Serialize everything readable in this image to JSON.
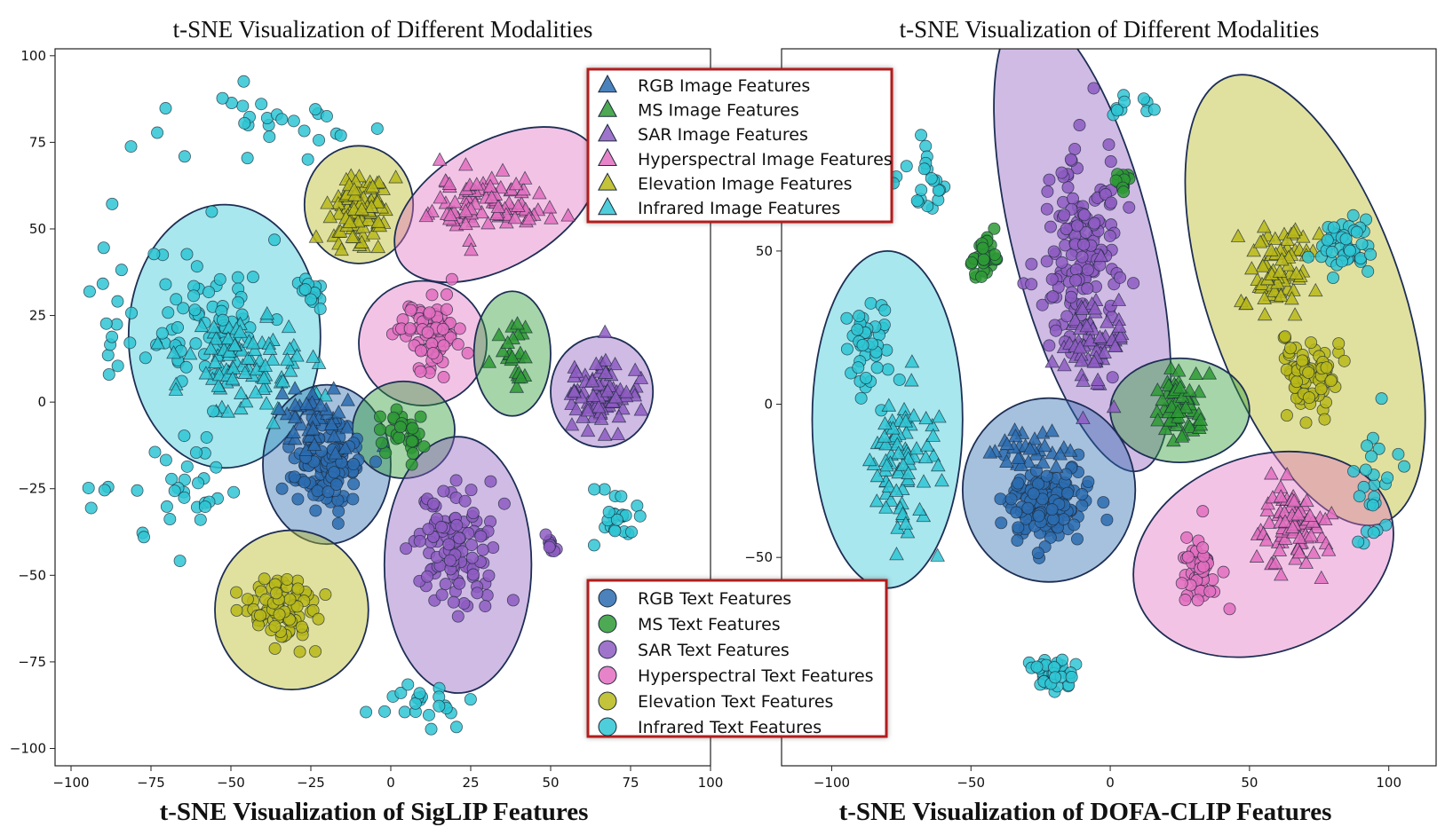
{
  "figure_captions": [
    "t-SNE Visualization of SigLIP Features",
    "t-SNE Visualization of DOFA-CLIP Features"
  ],
  "legend_image": {
    "entries": [
      "RGB Image Features",
      "MS Image Features",
      "SAR Image Features",
      "Hyperspectral Image Features",
      "Elevation Image Features",
      "Infrared Image Features"
    ],
    "marker": "triangle"
  },
  "legend_text": {
    "entries": [
      "RGB Text Features",
      "MS Text Features",
      "SAR Text Features",
      "Hyperspectral Text Features",
      "Elevation Text Features",
      "Infrared Text Features"
    ],
    "marker": "circle"
  },
  "colors": {
    "RGB": "#2b6cb0",
    "MS": "#2e9a35",
    "SAR": "#8e5cc2",
    "Hyperspectral": "#e36fc0",
    "Elevation": "#b8b81a",
    "Infrared": "#2fc6d3",
    "legend_border": "#b31b1b",
    "ellipse_edge": "#1d2e55"
  },
  "chart_data": [
    {
      "type": "scatter",
      "title": "t-SNE Visualization of Different Modalities",
      "caption": "t-SNE Visualization of SigLIP Features",
      "xlabel": "",
      "ylabel": "",
      "xlim": [
        -105,
        100
      ],
      "ylim": [
        -105,
        102
      ],
      "xticks": [
        -100,
        -75,
        -50,
        -25,
        0,
        25,
        50,
        75,
        100
      ],
      "yticks": [
        -100,
        -75,
        -50,
        -25,
        0,
        25,
        50,
        75,
        100
      ],
      "xtick_labels": [
        "−100",
        "−75",
        "−50",
        "−25",
        "0",
        "25",
        "50",
        "75",
        "100"
      ],
      "ytick_labels": [
        "−100",
        "−75",
        "−50",
        "−25",
        "0",
        "25",
        "50",
        "75",
        "100"
      ],
      "ellipses": [
        {
          "class": "Infrared",
          "cx": -52,
          "cy": 19,
          "rx": 30,
          "ry": 38,
          "angle": 0
        },
        {
          "class": "Elevation",
          "cx": -10,
          "cy": 57,
          "rx": 17,
          "ry": 17,
          "angle": 0
        },
        {
          "class": "Hyperspectral",
          "cx": 33,
          "cy": 57,
          "rx": 35,
          "ry": 18,
          "angle": -30
        },
        {
          "class": "Hyperspectral",
          "cx": 10,
          "cy": 17,
          "rx": 20,
          "ry": 18,
          "angle": 0
        },
        {
          "class": "MS",
          "cx": 38,
          "cy": 14,
          "rx": 12,
          "ry": 18,
          "angle": 0
        },
        {
          "class": "SAR",
          "cx": 66,
          "cy": 3,
          "rx": 16,
          "ry": 16,
          "angle": 0
        },
        {
          "class": "RGB",
          "cx": -20,
          "cy": -18,
          "rx": 20,
          "ry": 23,
          "angle": 0
        },
        {
          "class": "MS",
          "cx": 4,
          "cy": -8,
          "rx": 16,
          "ry": 14,
          "angle": 0
        },
        {
          "class": "SAR",
          "cx": 21,
          "cy": -47,
          "rx": 23,
          "ry": 37,
          "angle": 0
        },
        {
          "class": "Elevation",
          "cx": -31,
          "cy": -60,
          "rx": 24,
          "ry": 23,
          "angle": 0
        }
      ],
      "clusters": [
        {
          "class": "Infrared",
          "marker": "circle",
          "cx": -58,
          "cy": 25,
          "sx": 17,
          "sy": 20,
          "n": 70
        },
        {
          "class": "Infrared",
          "marker": "triangle",
          "cx": -45,
          "cy": 10,
          "sx": 18,
          "sy": 14,
          "n": 90
        },
        {
          "class": "Infrared",
          "marker": "circle",
          "cx": -25,
          "cy": 32,
          "sx": 5,
          "sy": 5,
          "n": 15
        },
        {
          "class": "Elevation",
          "marker": "triangle",
          "cx": -10,
          "cy": 56,
          "sx": 9,
          "sy": 9,
          "n": 90
        },
        {
          "class": "Hyperspectral",
          "marker": "triangle",
          "cx": 31,
          "cy": 57,
          "sx": 16,
          "sy": 8,
          "n": 90
        },
        {
          "class": "Hyperspectral",
          "marker": "circle",
          "cx": 12,
          "cy": 21,
          "sx": 10,
          "sy": 10,
          "n": 80
        },
        {
          "class": "MS",
          "marker": "triangle",
          "cx": 38,
          "cy": 15,
          "sx": 5,
          "sy": 9,
          "n": 25
        },
        {
          "class": "SAR",
          "marker": "triangle",
          "cx": 66,
          "cy": 3,
          "sx": 8,
          "sy": 10,
          "n": 80
        },
        {
          "class": "RGB",
          "marker": "circle",
          "cx": -20,
          "cy": -18,
          "sx": 9,
          "sy": 11,
          "n": 130
        },
        {
          "class": "RGB",
          "marker": "triangle",
          "cx": -25,
          "cy": -5,
          "sx": 9,
          "sy": 9,
          "n": 40
        },
        {
          "class": "MS",
          "marker": "circle",
          "cx": 4,
          "cy": -8,
          "sx": 7,
          "sy": 6,
          "n": 30
        },
        {
          "class": "SAR",
          "marker": "circle",
          "cx": 20,
          "cy": -42,
          "sx": 11,
          "sy": 17,
          "n": 110
        },
        {
          "class": "SAR",
          "marker": "circle",
          "cx": 50,
          "cy": -41,
          "sx": 2,
          "sy": 2,
          "n": 10
        },
        {
          "class": "Elevation",
          "marker": "circle",
          "cx": -33,
          "cy": -60,
          "sx": 11,
          "sy": 9,
          "n": 80
        },
        {
          "class": "Infrared",
          "marker": "circle",
          "cx": -67,
          "cy": -25,
          "sx": 24,
          "sy": 16,
          "n": 35
        },
        {
          "class": "Infrared",
          "marker": "circle",
          "cx": -40,
          "cy": 80,
          "sx": 28,
          "sy": 9,
          "n": 28
        },
        {
          "class": "Infrared",
          "marker": "circle",
          "cx": 10,
          "cy": -88,
          "sx": 14,
          "sy": 5,
          "n": 22
        },
        {
          "class": "Infrared",
          "marker": "circle",
          "cx": 70,
          "cy": -32,
          "sx": 10,
          "sy": 8,
          "n": 24
        },
        {
          "class": "Infrared",
          "marker": "circle",
          "cx": -88,
          "cy": 30,
          "sx": 5,
          "sy": 18,
          "n": 12
        }
      ]
    },
    {
      "type": "scatter",
      "title": "t-SNE Visualization of Different Modalities",
      "caption": "t-SNE Visualization of DOFA-CLIP Features",
      "xlabel": "",
      "ylabel": "",
      "xlim": [
        -118,
        117
      ],
      "ylim": [
        -118,
        116
      ],
      "xticks": [
        -100,
        -50,
        0,
        50,
        100
      ],
      "yticks": [
        -50,
        0,
        50
      ],
      "xtick_labels": [
        "−100",
        "−50",
        "0",
        "50",
        "100"
      ],
      "ytick_labels": [
        "−50",
        "0",
        "50"
      ],
      "ellipses": [
        {
          "class": "Infrared",
          "cx": -80,
          "cy": -5,
          "rx": 27,
          "ry": 55,
          "angle": 0
        },
        {
          "class": "SAR",
          "cx": -10,
          "cy": 53,
          "rx": 25,
          "ry": 77,
          "angle": -14
        },
        {
          "class": "Elevation",
          "cx": 70,
          "cy": 34,
          "rx": 35,
          "ry": 77,
          "angle": -19
        },
        {
          "class": "MS",
          "cx": 25,
          "cy": -2,
          "rx": 25,
          "ry": 17,
          "angle": 0
        },
        {
          "class": "RGB",
          "cx": -22,
          "cy": -28,
          "rx": 31,
          "ry": 30,
          "angle": 0
        },
        {
          "class": "Hyperspectral",
          "cx": 55,
          "cy": -49,
          "rx": 48,
          "ry": 32,
          "angle": -20
        }
      ],
      "clusters": [
        {
          "class": "Infrared",
          "marker": "circle",
          "cx": -88,
          "cy": 18,
          "sx": 10,
          "sy": 14,
          "n": 40
        },
        {
          "class": "Infrared",
          "marker": "triangle",
          "cx": -75,
          "cy": -18,
          "sx": 10,
          "sy": 22,
          "n": 75
        },
        {
          "class": "SAR",
          "marker": "circle",
          "cx": -12,
          "cy": 50,
          "sx": 13,
          "sy": 30,
          "n": 150
        },
        {
          "class": "SAR",
          "marker": "triangle",
          "cx": -6,
          "cy": 20,
          "sx": 10,
          "sy": 15,
          "n": 60
        },
        {
          "class": "MS",
          "marker": "circle",
          "cx": -45,
          "cy": 48,
          "sx": 5,
          "sy": 8,
          "n": 40
        },
        {
          "class": "MS",
          "marker": "circle",
          "cx": 5,
          "cy": 72,
          "sx": 3,
          "sy": 4,
          "n": 15
        },
        {
          "class": "Elevation",
          "marker": "triangle",
          "cx": 60,
          "cy": 45,
          "sx": 11,
          "sy": 13,
          "n": 70
        },
        {
          "class": "Elevation",
          "marker": "circle",
          "cx": 72,
          "cy": 10,
          "sx": 10,
          "sy": 14,
          "n": 80
        },
        {
          "class": "MS",
          "marker": "triangle",
          "cx": 25,
          "cy": -2,
          "sx": 8,
          "sy": 10,
          "n": 60
        },
        {
          "class": "RGB",
          "marker": "circle",
          "cx": -22,
          "cy": -32,
          "sx": 14,
          "sy": 11,
          "n": 140
        },
        {
          "class": "RGB",
          "marker": "triangle",
          "cx": -30,
          "cy": -15,
          "sx": 12,
          "sy": 5,
          "n": 30
        },
        {
          "class": "Hyperspectral",
          "marker": "triangle",
          "cx": 65,
          "cy": -40,
          "sx": 10,
          "sy": 11,
          "n": 80
        },
        {
          "class": "Hyperspectral",
          "marker": "circle",
          "cx": 32,
          "cy": -55,
          "sx": 7,
          "sy": 9,
          "n": 55
        },
        {
          "class": "Infrared",
          "marker": "circle",
          "cx": 83,
          "cy": 52,
          "sx": 8,
          "sy": 8,
          "n": 45
        },
        {
          "class": "Infrared",
          "marker": "circle",
          "cx": -20,
          "cy": -88,
          "sx": 9,
          "sy": 5,
          "n": 40
        },
        {
          "class": "Infrared",
          "marker": "circle",
          "cx": -68,
          "cy": 72,
          "sx": 8,
          "sy": 10,
          "n": 22
        },
        {
          "class": "Infrared",
          "marker": "circle",
          "cx": 95,
          "cy": -25,
          "sx": 10,
          "sy": 25,
          "n": 25
        },
        {
          "class": "Infrared",
          "marker": "circle",
          "cx": 8,
          "cy": 97,
          "sx": 6,
          "sy": 3,
          "n": 10
        }
      ]
    }
  ]
}
